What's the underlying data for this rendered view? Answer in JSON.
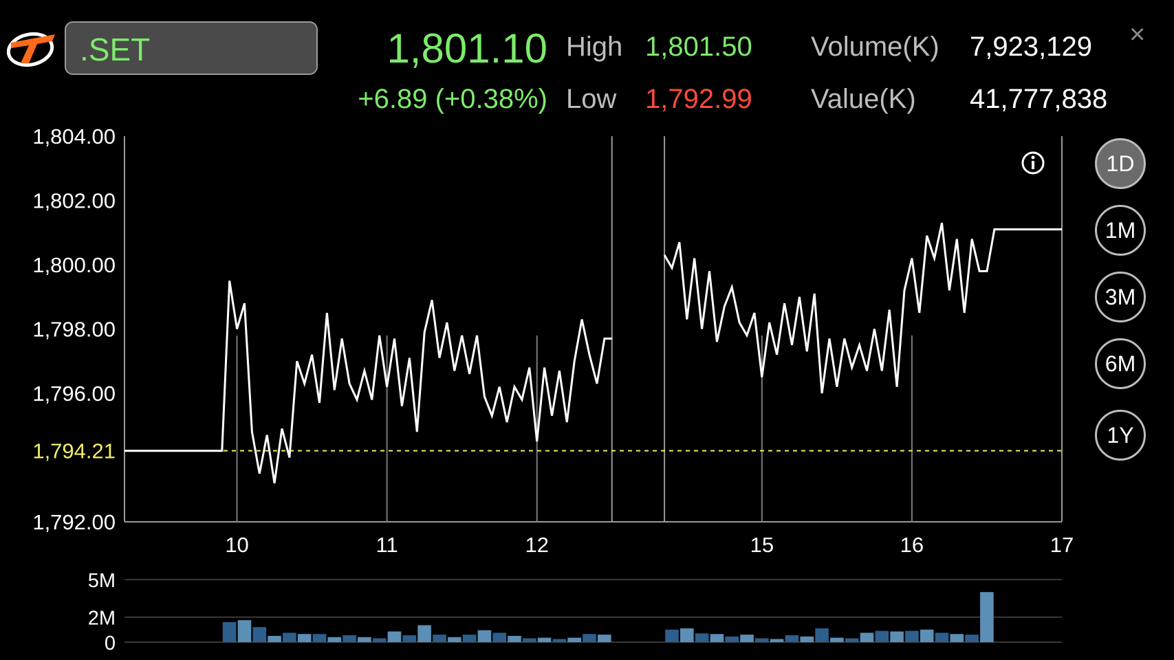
{
  "header": {
    "symbol": ".SET",
    "last_price": "1,801.10",
    "change": "+6.89 (+0.38%)",
    "high_label": "High",
    "high_value": "1,801.50",
    "low_label": "Low",
    "low_value": "1,792.99",
    "volume_label": "Volume(K)",
    "volume_value": "7,923,129",
    "value_label": "Value(K)",
    "value_value": "41,777,838",
    "close_glyph": "×"
  },
  "colors": {
    "up": "#7dea6b",
    "down": "#ff4a3d",
    "baseline": "#f2ee6a",
    "volume_bar": "#2c5f8e",
    "volume_bar_alt": "#5c8fb6"
  },
  "timeframes": [
    {
      "label": "1D",
      "active": true
    },
    {
      "label": "1M",
      "active": false
    },
    {
      "label": "3M",
      "active": false
    },
    {
      "label": "6M",
      "active": false
    },
    {
      "label": "1Y",
      "active": false
    }
  ],
  "icons": {
    "info": "info-icon",
    "close": "close-icon",
    "logo": "brand-logo-icon"
  },
  "chart_data": [
    {
      "type": "line",
      "ylim": [
        1792,
        1804
      ],
      "yticks": [
        "1,804.00",
        "1,802.00",
        "1,800.00",
        "1,798.00",
        "1,796.00",
        "1,792.00"
      ],
      "yticks_values": [
        1804,
        1802,
        1800,
        1798,
        1796,
        1792
      ],
      "baseline": {
        "value": 1794.21,
        "label": "1,794.21"
      },
      "xticks": [
        {
          "label": "10",
          "t": 1
        },
        {
          "label": "11",
          "t": 2
        },
        {
          "label": "12",
          "t": 3
        },
        {
          "label": "15",
          "t": 4.5
        },
        {
          "label": "16",
          "t": 5.5
        },
        {
          "label": "17",
          "t": 6.5
        }
      ],
      "xlim": [
        0.25,
        6.5
      ],
      "segments": [
        {
          "x": [
            0.25,
            0.9,
            0.95,
            1.0,
            1.05,
            1.1,
            1.15,
            1.2,
            1.25,
            1.3,
            1.35,
            1.4,
            1.45,
            1.5,
            1.55,
            1.6,
            1.65,
            1.7,
            1.75,
            1.8,
            1.85,
            1.9,
            1.95,
            2.0,
            2.05,
            2.1,
            2.15,
            2.2,
            2.25,
            2.3,
            2.35,
            2.4,
            2.45,
            2.5,
            2.55,
            2.6,
            2.65,
            2.7,
            2.75,
            2.8,
            2.85,
            2.9,
            2.95,
            3.0,
            3.05,
            3.1,
            3.15,
            3.2,
            3.25,
            3.3,
            3.35,
            3.4,
            3.45,
            3.5
          ],
          "y": [
            1794.21,
            1794.21,
            1799.5,
            1798.0,
            1798.8,
            1794.8,
            1793.5,
            1794.7,
            1793.2,
            1794.9,
            1794.0,
            1797.0,
            1796.3,
            1797.2,
            1795.7,
            1798.5,
            1796.1,
            1797.7,
            1796.3,
            1795.8,
            1796.7,
            1795.8,
            1797.8,
            1796.2,
            1797.7,
            1795.6,
            1797.1,
            1794.8,
            1797.9,
            1798.9,
            1797.1,
            1798.2,
            1796.7,
            1797.8,
            1796.6,
            1797.8,
            1795.9,
            1795.3,
            1796.2,
            1795.1,
            1796.2,
            1795.8,
            1796.8,
            1794.5,
            1796.8,
            1795.3,
            1796.7,
            1795.1,
            1797.0,
            1798.3,
            1797.2,
            1796.3,
            1797.7,
            1797.7
          ]
        },
        {
          "x": [
            3.85,
            3.9,
            3.95,
            4.0,
            4.05,
            4.1,
            4.15,
            4.2,
            4.25,
            4.3,
            4.35,
            4.4,
            4.45,
            4.5,
            4.55,
            4.6,
            4.65,
            4.7,
            4.75,
            4.8,
            4.85,
            4.9,
            4.95,
            5.0,
            5.05,
            5.1,
            5.15,
            5.2,
            5.25,
            5.3,
            5.35,
            5.4,
            5.45,
            5.5,
            5.55,
            5.6,
            5.65,
            5.7,
            5.75,
            5.8,
            5.85,
            5.9,
            5.95,
            6.0,
            6.05,
            6.1,
            6.15,
            6.5
          ],
          "y": [
            1800.3,
            1799.9,
            1800.7,
            1798.3,
            1800.2,
            1798.0,
            1799.8,
            1797.6,
            1798.7,
            1799.3,
            1798.2,
            1797.8,
            1798.5,
            1796.5,
            1798.2,
            1797.2,
            1798.8,
            1797.5,
            1799.0,
            1797.3,
            1799.1,
            1796.0,
            1797.7,
            1796.2,
            1797.7,
            1796.8,
            1797.5,
            1796.7,
            1798.0,
            1796.7,
            1798.6,
            1796.2,
            1799.2,
            1800.2,
            1798.5,
            1800.9,
            1800.2,
            1801.3,
            1799.2,
            1800.8,
            1798.5,
            1800.8,
            1799.8,
            1799.8,
            1801.1,
            1801.1,
            1801.1,
            1801.1
          ]
        }
      ],
      "session_breaks": [
        3.5,
        3.85
      ]
    },
    {
      "type": "bar",
      "ylim": [
        0,
        5
      ],
      "yticks": [
        "5M",
        "2M",
        "0"
      ],
      "yticks_values": [
        5,
        2,
        0
      ],
      "bars": [
        {
          "x": 0.95,
          "v": 1.6
        },
        {
          "x": 1.05,
          "v": 1.75
        },
        {
          "x": 1.15,
          "v": 1.2
        },
        {
          "x": 1.25,
          "v": 0.5
        },
        {
          "x": 1.35,
          "v": 0.75
        },
        {
          "x": 1.45,
          "v": 0.65
        },
        {
          "x": 1.55,
          "v": 0.65
        },
        {
          "x": 1.65,
          "v": 0.4
        },
        {
          "x": 1.75,
          "v": 0.55
        },
        {
          "x": 1.85,
          "v": 0.4
        },
        {
          "x": 1.95,
          "v": 0.3
        },
        {
          "x": 2.05,
          "v": 0.85
        },
        {
          "x": 2.15,
          "v": 0.55
        },
        {
          "x": 2.25,
          "v": 1.35
        },
        {
          "x": 2.35,
          "v": 0.6
        },
        {
          "x": 2.45,
          "v": 0.4
        },
        {
          "x": 2.55,
          "v": 0.6
        },
        {
          "x": 2.65,
          "v": 0.95
        },
        {
          "x": 2.75,
          "v": 0.75
        },
        {
          "x": 2.85,
          "v": 0.5
        },
        {
          "x": 2.95,
          "v": 0.3
        },
        {
          "x": 3.05,
          "v": 0.35
        },
        {
          "x": 3.15,
          "v": 0.25
        },
        {
          "x": 3.25,
          "v": 0.35
        },
        {
          "x": 3.35,
          "v": 0.65
        },
        {
          "x": 3.45,
          "v": 0.6
        },
        {
          "x": 3.9,
          "v": 1.0
        },
        {
          "x": 4.0,
          "v": 1.1
        },
        {
          "x": 4.1,
          "v": 0.7
        },
        {
          "x": 4.2,
          "v": 0.65
        },
        {
          "x": 4.3,
          "v": 0.45
        },
        {
          "x": 4.4,
          "v": 0.6
        },
        {
          "x": 4.5,
          "v": 0.3
        },
        {
          "x": 4.6,
          "v": 0.25
        },
        {
          "x": 4.7,
          "v": 0.55
        },
        {
          "x": 4.8,
          "v": 0.45
        },
        {
          "x": 4.9,
          "v": 1.1
        },
        {
          "x": 5.0,
          "v": 0.35
        },
        {
          "x": 5.1,
          "v": 0.3
        },
        {
          "x": 5.2,
          "v": 0.75
        },
        {
          "x": 5.3,
          "v": 0.9
        },
        {
          "x": 5.4,
          "v": 0.85
        },
        {
          "x": 5.5,
          "v": 0.9
        },
        {
          "x": 5.6,
          "v": 1.0
        },
        {
          "x": 5.7,
          "v": 0.75
        },
        {
          "x": 5.8,
          "v": 0.65
        },
        {
          "x": 5.9,
          "v": 0.6
        },
        {
          "x": 6.0,
          "v": 4.0
        }
      ]
    }
  ]
}
